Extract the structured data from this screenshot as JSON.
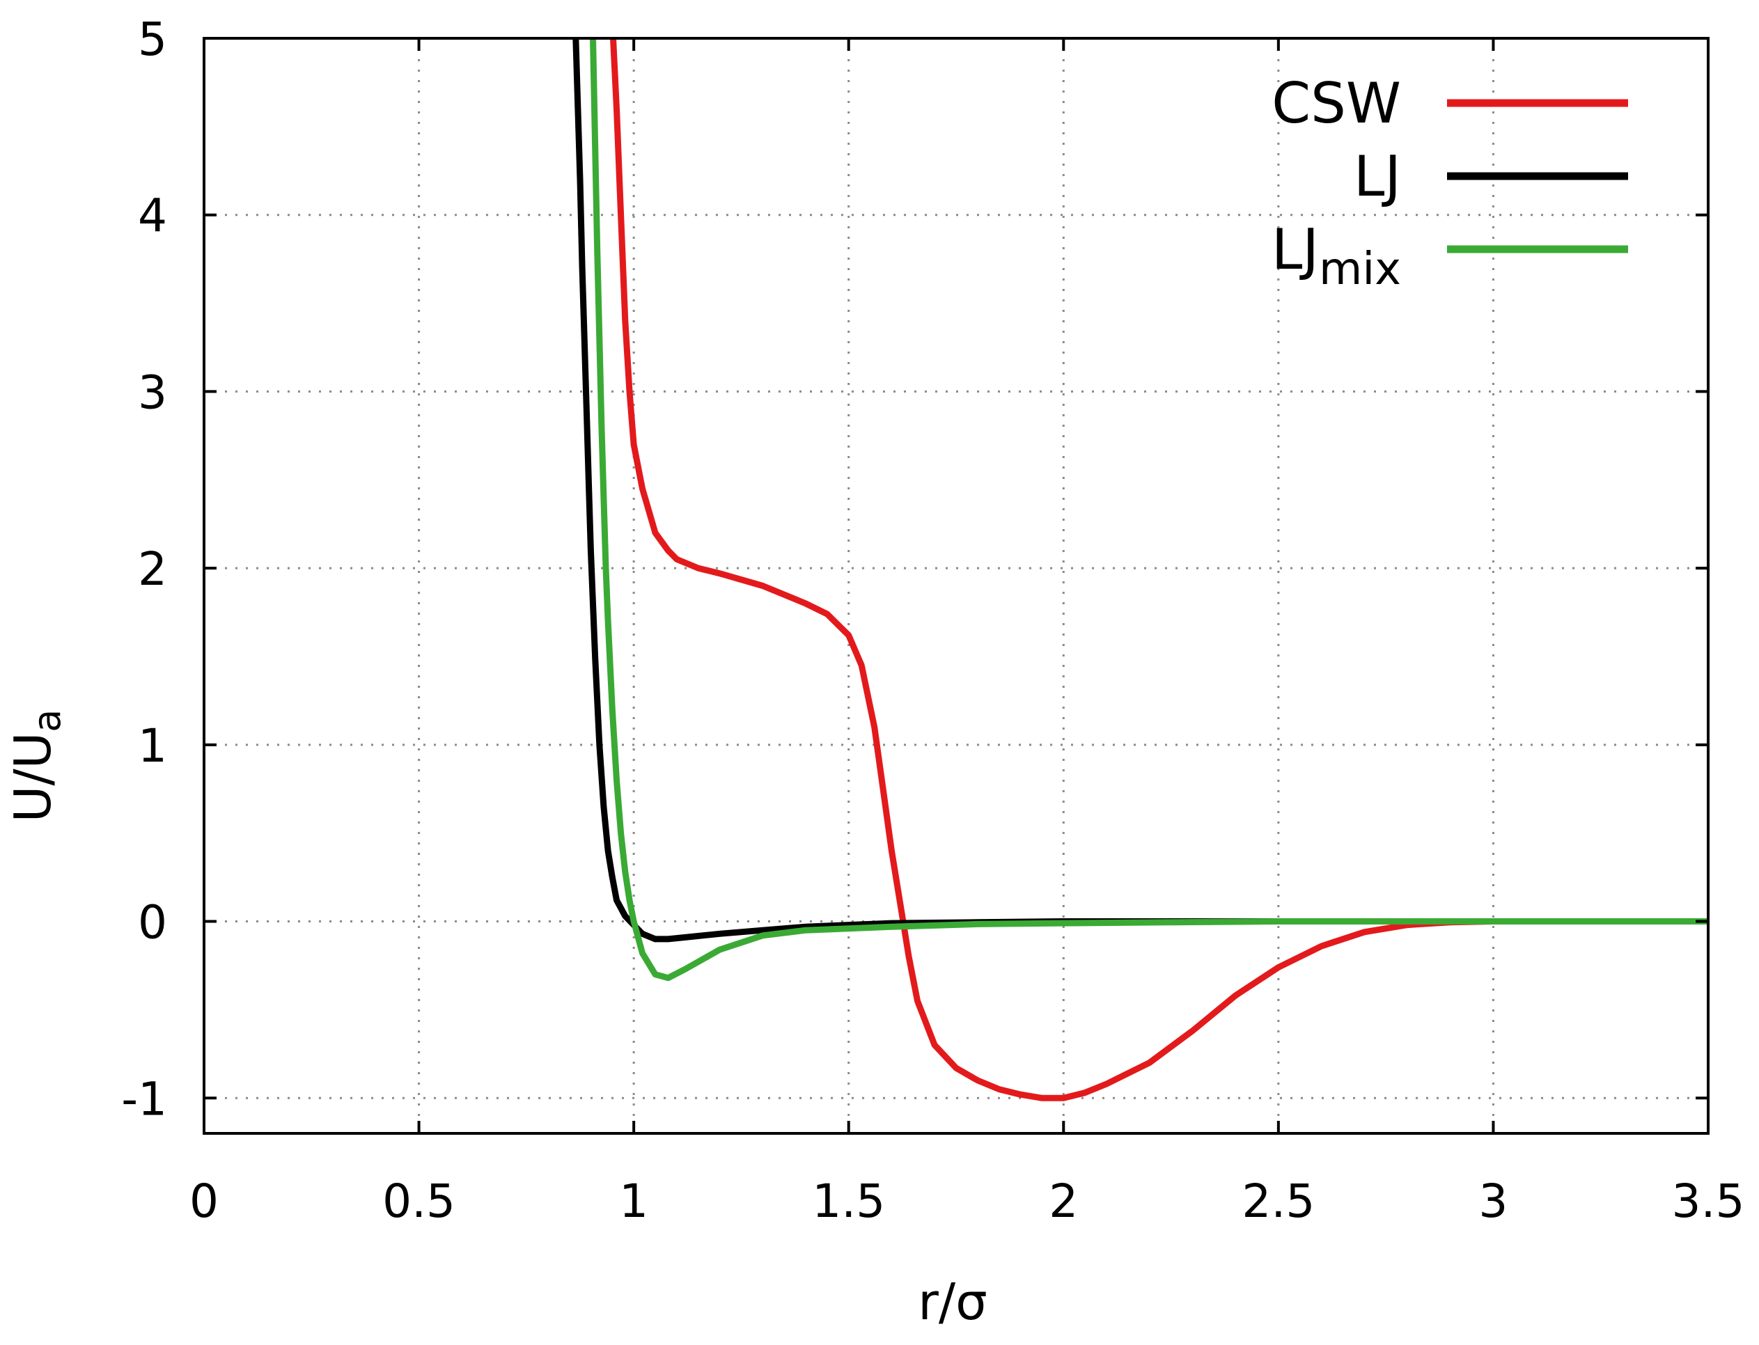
{
  "chart_data": {
    "type": "line",
    "title": "",
    "xlabel": "r/σ",
    "ylabel_main": "U/U",
    "ylabel_sub": "a",
    "xlim": [
      0,
      3.5
    ],
    "ylim": [
      -1.2,
      5
    ],
    "grid": true,
    "legend_position": "top-right",
    "x_ticks": [
      0,
      0.5,
      1,
      1.5,
      2,
      2.5,
      3,
      3.5
    ],
    "x_tick_labels": [
      "0",
      "0.5",
      "1",
      "1.5",
      "2",
      "2.5",
      "3",
      "3.5"
    ],
    "y_ticks": [
      -1,
      0,
      1,
      2,
      3,
      4,
      5
    ],
    "y_tick_labels": [
      "-1",
      "0",
      "1",
      "2",
      "3",
      "4",
      "5"
    ],
    "series": [
      {
        "name": "CSW",
        "legend_main": "CSW",
        "legend_sub": "",
        "color": "#e31a1c",
        "x": [
          0.952,
          0.96,
          0.97,
          0.98,
          0.99,
          1.0,
          1.02,
          1.05,
          1.08,
          1.1,
          1.15,
          1.2,
          1.3,
          1.4,
          1.45,
          1.5,
          1.53,
          1.56,
          1.58,
          1.6,
          1.62,
          1.64,
          1.66,
          1.7,
          1.75,
          1.8,
          1.85,
          1.9,
          1.95,
          2.0,
          2.05,
          2.1,
          2.2,
          2.3,
          2.4,
          2.5,
          2.6,
          2.7,
          2.8,
          2.9,
          3.0,
          3.5
        ],
        "y": [
          5,
          4.6,
          4.0,
          3.4,
          3.0,
          2.7,
          2.45,
          2.2,
          2.1,
          2.05,
          2.0,
          1.97,
          1.9,
          1.8,
          1.74,
          1.62,
          1.45,
          1.1,
          0.75,
          0.4,
          0.1,
          -0.2,
          -0.45,
          -0.7,
          -0.83,
          -0.9,
          -0.95,
          -0.98,
          -1.0,
          -1.0,
          -0.97,
          -0.92,
          -0.8,
          -0.62,
          -0.42,
          -0.26,
          -0.14,
          -0.06,
          -0.02,
          -0.005,
          0,
          0
        ]
      },
      {
        "name": "LJ",
        "legend_main": "LJ",
        "legend_sub": "",
        "color": "#000000",
        "x": [
          0.865,
          0.87,
          0.875,
          0.88,
          0.885,
          0.89,
          0.895,
          0.9,
          0.905,
          0.91,
          0.92,
          0.93,
          0.94,
          0.95,
          0.96,
          0.98,
          1.0,
          1.02,
          1.05,
          1.08,
          1.12,
          1.2,
          1.3,
          1.4,
          1.5,
          1.6,
          1.8,
          2.0,
          2.5,
          3.0,
          3.5
        ],
        "y": [
          5,
          4.6,
          4.2,
          3.7,
          3.3,
          2.9,
          2.5,
          2.1,
          1.8,
          1.5,
          1.0,
          0.65,
          0.4,
          0.25,
          0.12,
          0.03,
          -0.02,
          -0.07,
          -0.1,
          -0.1,
          -0.09,
          -0.07,
          -0.05,
          -0.03,
          -0.02,
          -0.01,
          -0.005,
          0,
          0,
          0,
          0
        ]
      },
      {
        "name": "LJ_mix",
        "legend_main": "LJ",
        "legend_sub": "mix",
        "color": "#3aaa35",
        "x": [
          0.905,
          0.91,
          0.915,
          0.92,
          0.925,
          0.93,
          0.935,
          0.94,
          0.95,
          0.96,
          0.97,
          0.98,
          0.99,
          1.0,
          1.02,
          1.05,
          1.08,
          1.12,
          1.2,
          1.3,
          1.4,
          1.5,
          1.6,
          1.8,
          2.0,
          2.5,
          3.0,
          3.5
        ],
        "y": [
          5,
          4.4,
          3.8,
          3.3,
          2.8,
          2.4,
          2.0,
          1.7,
          1.2,
          0.8,
          0.5,
          0.28,
          0.12,
          0.0,
          -0.18,
          -0.3,
          -0.32,
          -0.27,
          -0.16,
          -0.08,
          -0.05,
          -0.04,
          -0.03,
          -0.015,
          -0.01,
          0,
          0,
          0
        ]
      }
    ]
  }
}
